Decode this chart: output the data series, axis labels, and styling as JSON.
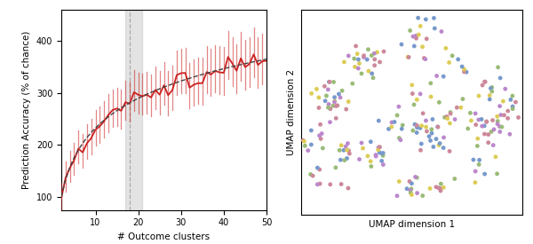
{
  "left_xlim": [
    2,
    50
  ],
  "left_ylim": [
    75,
    460
  ],
  "left_xlabel": "# Outcome clusters",
  "left_ylabel": "Prediction Accuracy (% of chance)",
  "shaded_region": [
    17,
    21
  ],
  "dashed_vline": 18.0,
  "right_xlabel": "UMAP dimension 1",
  "right_ylabel": "UMAP dimension 2",
  "bg_color": "#ffffff",
  "line_color": "#cc2222",
  "shade_color": "#cccccc",
  "point_colors": [
    "#7799cc",
    "#cc8899",
    "#99bb77",
    "#ddcc55",
    "#bb88cc"
  ],
  "n_clusters": 20,
  "seed": 7
}
